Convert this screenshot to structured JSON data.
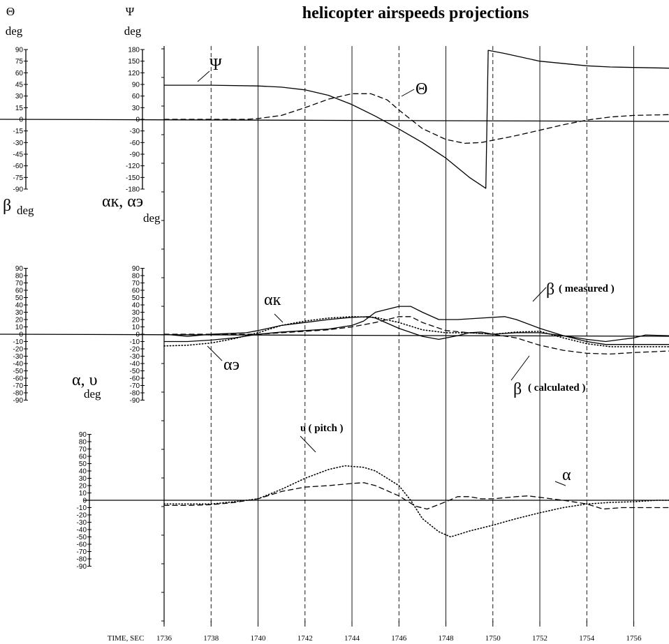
{
  "chart_data": {
    "type": "line",
    "title": "helicopter airspeeds projections",
    "x_axis": {
      "label": "TIME, SEC",
      "tick_labels": [
        "1736",
        "1738",
        "1740",
        "1742",
        "1744",
        "1746",
        "1748",
        "1750",
        "1752",
        "1754",
        "1756"
      ],
      "range": [
        1736,
        1757.5
      ]
    },
    "axes": [
      {
        "id": "theta",
        "symbol": "Θ",
        "unit": "deg",
        "ticks": [
          "90",
          "75",
          "60",
          "45",
          "30",
          "15",
          "0",
          "-15",
          "-30",
          "-45",
          "-60",
          "-75",
          "-90"
        ],
        "ylim": [
          -90,
          90
        ]
      },
      {
        "id": "psi",
        "symbol": "Ψ",
        "unit": "deg",
        "ticks": [
          "180",
          "150",
          "120",
          "90",
          "60",
          "30",
          "0",
          "-30",
          "-60",
          "-90",
          "-120",
          "-150",
          "-180"
        ],
        "ylim": [
          -180,
          180
        ]
      },
      {
        "id": "beta",
        "symbol": "β",
        "unit": "deg",
        "ticks": [
          "90",
          "80",
          "70",
          "60",
          "50",
          "40",
          "30",
          "20",
          "10",
          "0",
          "-10",
          "-20",
          "-30",
          "-40",
          "-50",
          "-60",
          "-70",
          "-80",
          "-90"
        ],
        "ylim": [
          -90,
          90
        ]
      },
      {
        "id": "alpha_k_e",
        "symbol": "αк, αэ",
        "unit": "deg",
        "ticks": [
          "90",
          "80",
          "70",
          "60",
          "50",
          "40",
          "30",
          "20",
          "10",
          "0",
          "-10",
          "-20",
          "-30",
          "-40",
          "-50",
          "-60",
          "-70",
          "-80",
          "-90"
        ],
        "ylim": [
          -90,
          90
        ]
      },
      {
        "id": "alpha_v",
        "symbol": "α, υ",
        "unit": "deg",
        "ticks": [
          "90",
          "80",
          "70",
          "60",
          "50",
          "40",
          "30",
          "20",
          "10",
          "0",
          "-10",
          "-20",
          "-30",
          "-40",
          "-50",
          "-60",
          "-70",
          "-80",
          "-90"
        ],
        "ylim": [
          -90,
          90
        ]
      }
    ],
    "series": [
      {
        "panel": "top",
        "axis": "psi",
        "name": "Ψ",
        "style": "solid",
        "points": [
          [
            1736,
            88
          ],
          [
            1738,
            88
          ],
          [
            1740,
            86
          ],
          [
            1741,
            83
          ],
          [
            1742,
            76
          ],
          [
            1743,
            62
          ],
          [
            1744,
            38
          ],
          [
            1745,
            8
          ],
          [
            1746,
            -25
          ],
          [
            1747,
            -60
          ],
          [
            1748,
            -100
          ],
          [
            1749,
            -150
          ],
          [
            1749.7,
            -178
          ],
          [
            1749.8,
            178
          ],
          [
            1750.5,
            170
          ],
          [
            1752,
            150
          ],
          [
            1754,
            138
          ],
          [
            1755,
            135
          ],
          [
            1757.5,
            132
          ]
        ]
      },
      {
        "panel": "top",
        "axis": "theta",
        "name": "Θ",
        "style": "dashed",
        "points": [
          [
            1736,
            0
          ],
          [
            1739.5,
            0
          ],
          [
            1740,
            1
          ],
          [
            1741,
            5
          ],
          [
            1742,
            15
          ],
          [
            1743,
            26
          ],
          [
            1744,
            33
          ],
          [
            1744.8,
            33
          ],
          [
            1745.5,
            25
          ],
          [
            1746,
            12
          ],
          [
            1747,
            -12
          ],
          [
            1748,
            -26
          ],
          [
            1748.8,
            -31
          ],
          [
            1749.5,
            -30
          ],
          [
            1750,
            -27
          ],
          [
            1751,
            -21
          ],
          [
            1752,
            -14
          ],
          [
            1753,
            -7
          ],
          [
            1754,
            -1
          ],
          [
            1755,
            3
          ],
          [
            1756,
            5
          ],
          [
            1757.5,
            6
          ]
        ]
      },
      {
        "panel": "middle",
        "axis": "beta",
        "name": "β ( measured )",
        "style": "solid",
        "points": [
          [
            1736,
            -10
          ],
          [
            1737,
            -10
          ],
          [
            1738,
            -8
          ],
          [
            1739,
            -5
          ],
          [
            1740,
            0
          ],
          [
            1741,
            3
          ],
          [
            1742,
            5
          ],
          [
            1743,
            7
          ],
          [
            1744,
            12
          ],
          [
            1744.5,
            18
          ],
          [
            1745,
            30
          ],
          [
            1746,
            38
          ],
          [
            1746.5,
            38
          ],
          [
            1747,
            30
          ],
          [
            1747.7,
            20
          ],
          [
            1748.5,
            20
          ],
          [
            1749.5,
            22
          ],
          [
            1750.5,
            24
          ],
          [
            1751,
            20
          ],
          [
            1752,
            8
          ],
          [
            1753,
            -2
          ],
          [
            1754,
            -10
          ],
          [
            1754.8,
            -14
          ],
          [
            1755.5,
            -14
          ],
          [
            1757.5,
            -14
          ]
        ]
      },
      {
        "panel": "middle",
        "axis": "beta",
        "name": "β ( calculated )",
        "style": "dashed",
        "points": [
          [
            1736,
            0
          ],
          [
            1739,
            0
          ],
          [
            1740,
            0
          ],
          [
            1741,
            2
          ],
          [
            1742,
            4
          ],
          [
            1743,
            6
          ],
          [
            1744,
            10
          ],
          [
            1745,
            16
          ],
          [
            1746,
            24
          ],
          [
            1746.5,
            24
          ],
          [
            1747,
            16
          ],
          [
            1748,
            5
          ],
          [
            1749,
            2
          ],
          [
            1750,
            0
          ],
          [
            1751,
            -5
          ],
          [
            1752,
            -15
          ],
          [
            1753,
            -22
          ],
          [
            1754,
            -26
          ],
          [
            1755,
            -27
          ],
          [
            1756,
            -25
          ],
          [
            1757.5,
            -23
          ]
        ]
      },
      {
        "panel": "middle",
        "axis": "alpha_k_e",
        "name": "αк",
        "style": "solid",
        "points": [
          [
            1736,
            0
          ],
          [
            1737,
            -3
          ],
          [
            1738,
            0
          ],
          [
            1739.5,
            2
          ],
          [
            1740,
            5
          ],
          [
            1741,
            12
          ],
          [
            1742,
            16
          ],
          [
            1743,
            20
          ],
          [
            1744,
            23
          ],
          [
            1744.7,
            24
          ],
          [
            1745,
            22
          ],
          [
            1746,
            8
          ],
          [
            1747,
            -3
          ],
          [
            1747.7,
            -7
          ],
          [
            1748.5,
            -2
          ],
          [
            1749,
            2
          ],
          [
            1749.5,
            3
          ],
          [
            1750,
            0
          ],
          [
            1751,
            2
          ],
          [
            1752,
            2
          ],
          [
            1753,
            -2
          ],
          [
            1754,
            -7
          ],
          [
            1754.8,
            -10
          ],
          [
            1755.5,
            -7
          ],
          [
            1756,
            -5
          ],
          [
            1756.5,
            -1
          ],
          [
            1757.5,
            -2
          ]
        ]
      },
      {
        "panel": "middle",
        "axis": "alpha_k_e",
        "name": "αэ",
        "style": "dotted",
        "points": [
          [
            1736,
            -16
          ],
          [
            1737,
            -15
          ],
          [
            1738,
            -12
          ],
          [
            1739,
            -6
          ],
          [
            1740,
            2
          ],
          [
            1741,
            12
          ],
          [
            1742,
            18
          ],
          [
            1743,
            22
          ],
          [
            1744,
            24
          ],
          [
            1745,
            23
          ],
          [
            1746,
            16
          ],
          [
            1747,
            6
          ],
          [
            1748,
            2
          ],
          [
            1749,
            2
          ],
          [
            1750,
            0
          ],
          [
            1751,
            3
          ],
          [
            1752,
            4
          ],
          [
            1753,
            -5
          ],
          [
            1754,
            -13
          ],
          [
            1755,
            -17
          ],
          [
            1756,
            -17
          ],
          [
            1757.5,
            -17
          ]
        ]
      },
      {
        "panel": "bottom",
        "axis": "alpha_v",
        "name": "υ ( pitch )",
        "style": "dotted",
        "points": [
          [
            1736,
            -5
          ],
          [
            1738,
            -5
          ],
          [
            1739,
            -2
          ],
          [
            1740,
            2
          ],
          [
            1741,
            15
          ],
          [
            1742,
            30
          ],
          [
            1743,
            42
          ],
          [
            1743.7,
            47
          ],
          [
            1744.5,
            45
          ],
          [
            1745,
            40
          ],
          [
            1746,
            20
          ],
          [
            1746.5,
            0
          ],
          [
            1747,
            -25
          ],
          [
            1747.7,
            -43
          ],
          [
            1748.2,
            -50
          ],
          [
            1749,
            -42
          ],
          [
            1750,
            -34
          ],
          [
            1751,
            -25
          ],
          [
            1752,
            -17
          ],
          [
            1753,
            -10
          ],
          [
            1754,
            -5
          ],
          [
            1755,
            -3
          ],
          [
            1756,
            -2
          ],
          [
            1757,
            0
          ],
          [
            1757.5,
            0
          ]
        ]
      },
      {
        "panel": "bottom",
        "axis": "alpha_v",
        "name": "α",
        "style": "dashed",
        "points": [
          [
            1736,
            -7
          ],
          [
            1737,
            -7
          ],
          [
            1738,
            -6
          ],
          [
            1739,
            -3
          ],
          [
            1740,
            2
          ],
          [
            1741,
            12
          ],
          [
            1742,
            18
          ],
          [
            1743,
            20
          ],
          [
            1744,
            23
          ],
          [
            1744.5,
            24
          ],
          [
            1745,
            20
          ],
          [
            1746,
            6
          ],
          [
            1746.7,
            -8
          ],
          [
            1747.2,
            -12
          ],
          [
            1748,
            -2
          ],
          [
            1748.5,
            5
          ],
          [
            1749,
            5
          ],
          [
            1749.5,
            2
          ],
          [
            1750,
            2
          ],
          [
            1751,
            5
          ],
          [
            1751.5,
            6
          ],
          [
            1752,
            4
          ],
          [
            1753,
            0
          ],
          [
            1754,
            -5
          ],
          [
            1754.7,
            -12
          ],
          [
            1755.5,
            -10
          ],
          [
            1757.5,
            -10
          ]
        ]
      }
    ]
  },
  "labels": {
    "theta_symbol": "Θ",
    "theta_unit": "deg",
    "psi_symbol": "Ψ",
    "psi_unit": "deg",
    "beta_symbol": "β",
    "beta_unit": "deg",
    "alpha_k_e_symbol": "αк, αэ",
    "alpha_k_e_unit": "deg",
    "alpha_v_symbol": "α, υ",
    "alpha_v_unit": "deg",
    "curve_psi": "Ψ",
    "curve_theta": "Θ",
    "curve_alpha_k": "αк",
    "curve_alpha_e": "αэ",
    "curve_beta_prefix": "β",
    "curve_beta_measured": "( measured )",
    "curve_beta_calculated": "( calculated )",
    "curve_pitch": "υ ( pitch )",
    "curve_alpha": "α"
  }
}
